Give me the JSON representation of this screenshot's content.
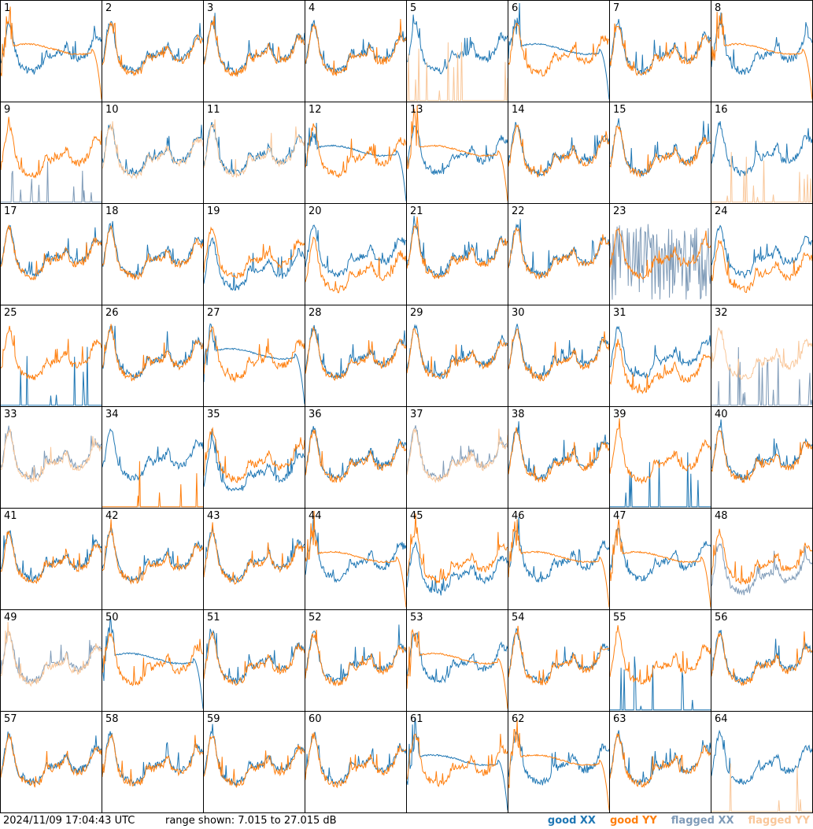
{
  "footer": {
    "timestamp": "2024/11/09 17:04:43 UTC",
    "range_text": "range shown: 7.015 to 27.015 dB"
  },
  "legend": [
    {
      "label": "good XX",
      "color": "#1f77b4"
    },
    {
      "label": "good YY",
      "color": "#ff7f0e"
    },
    {
      "label": "flagged XX",
      "color": "#7f9bb8"
    },
    {
      "label": "flagged YY",
      "color": "#f9c79a"
    }
  ],
  "chart_data": {
    "type": "line",
    "grid": {
      "rows": 8,
      "cols": 8
    },
    "ylim": [
      7.015,
      27.015
    ],
    "yunit": "dB",
    "series_keys": [
      "good XX",
      "good YY",
      "flagged XX",
      "flagged YY"
    ],
    "panels": [
      {
        "id": "1",
        "xx": {
          "status": "good",
          "shape": "normal"
        },
        "yy": {
          "status": "good",
          "shape": "dropoff"
        }
      },
      {
        "id": "2",
        "xx": {
          "status": "good",
          "shape": "normal"
        },
        "yy": {
          "status": "good",
          "shape": "normal"
        }
      },
      {
        "id": "3",
        "xx": {
          "status": "good",
          "shape": "normal"
        },
        "yy": {
          "status": "good",
          "shape": "normal"
        }
      },
      {
        "id": "4",
        "xx": {
          "status": "good",
          "shape": "normal"
        },
        "yy": {
          "status": "good",
          "shape": "normal"
        }
      },
      {
        "id": "5",
        "xx": {
          "status": "good",
          "shape": "normal"
        },
        "yy": {
          "status": "flagged",
          "shape": "spikes"
        }
      },
      {
        "id": "6",
        "xx": {
          "status": "good",
          "shape": "dropoff"
        },
        "yy": {
          "status": "good",
          "shape": "normal"
        }
      },
      {
        "id": "7",
        "xx": {
          "status": "good",
          "shape": "normal"
        },
        "yy": {
          "status": "good",
          "shape": "normal"
        }
      },
      {
        "id": "8",
        "xx": {
          "status": "good",
          "shape": "normal"
        },
        "yy": {
          "status": "good",
          "shape": "dropoff"
        }
      },
      {
        "id": "9",
        "xx": {
          "status": "flagged",
          "shape": "spikes"
        },
        "yy": {
          "status": "good",
          "shape": "normal"
        }
      },
      {
        "id": "10",
        "xx": {
          "status": "good",
          "shape": "normal"
        },
        "yy": {
          "status": "flagged",
          "shape": "normal"
        }
      },
      {
        "id": "11",
        "xx": {
          "status": "good",
          "shape": "normal"
        },
        "yy": {
          "status": "flagged",
          "shape": "normal"
        }
      },
      {
        "id": "12",
        "xx": {
          "status": "good",
          "shape": "dropoff"
        },
        "yy": {
          "status": "good",
          "shape": "normal"
        }
      },
      {
        "id": "13",
        "xx": {
          "status": "good",
          "shape": "normal"
        },
        "yy": {
          "status": "good",
          "shape": "dropoff"
        }
      },
      {
        "id": "14",
        "xx": {
          "status": "good",
          "shape": "normal"
        },
        "yy": {
          "status": "good",
          "shape": "normal"
        }
      },
      {
        "id": "15",
        "xx": {
          "status": "good",
          "shape": "normal"
        },
        "yy": {
          "status": "good",
          "shape": "normal"
        }
      },
      {
        "id": "16",
        "xx": {
          "status": "good",
          "shape": "normal"
        },
        "yy": {
          "status": "flagged",
          "shape": "spikes"
        }
      },
      {
        "id": "17",
        "xx": {
          "status": "good",
          "shape": "normal"
        },
        "yy": {
          "status": "good",
          "shape": "normal"
        }
      },
      {
        "id": "18",
        "xx": {
          "status": "good",
          "shape": "normal"
        },
        "yy": {
          "status": "good",
          "shape": "normal"
        }
      },
      {
        "id": "19",
        "xx": {
          "status": "good",
          "shape": "low"
        },
        "yy": {
          "status": "good",
          "shape": "normal"
        }
      },
      {
        "id": "20",
        "xx": {
          "status": "good",
          "shape": "normal"
        },
        "yy": {
          "status": "good",
          "shape": "low"
        }
      },
      {
        "id": "21",
        "xx": {
          "status": "good",
          "shape": "normal"
        },
        "yy": {
          "status": "good",
          "shape": "normal"
        }
      },
      {
        "id": "22",
        "xx": {
          "status": "good",
          "shape": "normal"
        },
        "yy": {
          "status": "good",
          "shape": "normal"
        }
      },
      {
        "id": "23",
        "xx": {
          "status": "flagged",
          "shape": "noisy"
        },
        "yy": {
          "status": "good",
          "shape": "normal"
        }
      },
      {
        "id": "24",
        "xx": {
          "status": "good",
          "shape": "normal"
        },
        "yy": {
          "status": "good",
          "shape": "low"
        }
      },
      {
        "id": "25",
        "xx": {
          "status": "good",
          "shape": "spikes"
        },
        "yy": {
          "status": "good",
          "shape": "normal"
        }
      },
      {
        "id": "26",
        "xx": {
          "status": "good",
          "shape": "normal"
        },
        "yy": {
          "status": "good",
          "shape": "normal"
        }
      },
      {
        "id": "27",
        "xx": {
          "status": "good",
          "shape": "dropoff"
        },
        "yy": {
          "status": "good",
          "shape": "normal"
        }
      },
      {
        "id": "28",
        "xx": {
          "status": "good",
          "shape": "normal"
        },
        "yy": {
          "status": "good",
          "shape": "normal"
        }
      },
      {
        "id": "29",
        "xx": {
          "status": "good",
          "shape": "normal"
        },
        "yy": {
          "status": "good",
          "shape": "normal"
        }
      },
      {
        "id": "30",
        "xx": {
          "status": "good",
          "shape": "normal"
        },
        "yy": {
          "status": "good",
          "shape": "normal"
        }
      },
      {
        "id": "31",
        "xx": {
          "status": "good",
          "shape": "normal"
        },
        "yy": {
          "status": "good",
          "shape": "low"
        }
      },
      {
        "id": "32",
        "xx": {
          "status": "flagged",
          "shape": "spikes"
        },
        "yy": {
          "status": "flagged",
          "shape": "normal"
        }
      },
      {
        "id": "33",
        "xx": {
          "status": "flagged",
          "shape": "normal"
        },
        "yy": {
          "status": "flagged",
          "shape": "normal"
        }
      },
      {
        "id": "34",
        "xx": {
          "status": "good",
          "shape": "normal"
        },
        "yy": {
          "status": "good",
          "shape": "spikes"
        }
      },
      {
        "id": "35",
        "xx": {
          "status": "good",
          "shape": "low"
        },
        "yy": {
          "status": "good",
          "shape": "normal"
        }
      },
      {
        "id": "36",
        "xx": {
          "status": "good",
          "shape": "normal"
        },
        "yy": {
          "status": "good",
          "shape": "normal"
        }
      },
      {
        "id": "37",
        "xx": {
          "status": "flagged",
          "shape": "normal"
        },
        "yy": {
          "status": "flagged",
          "shape": "normal"
        }
      },
      {
        "id": "38",
        "xx": {
          "status": "good",
          "shape": "normal"
        },
        "yy": {
          "status": "good",
          "shape": "normal"
        }
      },
      {
        "id": "39",
        "xx": {
          "status": "good",
          "shape": "spikes"
        },
        "yy": {
          "status": "good",
          "shape": "normal"
        }
      },
      {
        "id": "40",
        "xx": {
          "status": "good",
          "shape": "normal"
        },
        "yy": {
          "status": "good",
          "shape": "normal"
        }
      },
      {
        "id": "41",
        "xx": {
          "status": "good",
          "shape": "normal"
        },
        "yy": {
          "status": "good",
          "shape": "normal"
        }
      },
      {
        "id": "42",
        "xx": {
          "status": "good",
          "shape": "normal"
        },
        "yy": {
          "status": "good",
          "shape": "normal"
        }
      },
      {
        "id": "43",
        "xx": {
          "status": "good",
          "shape": "normal"
        },
        "yy": {
          "status": "good",
          "shape": "normal"
        }
      },
      {
        "id": "44",
        "xx": {
          "status": "good",
          "shape": "normal"
        },
        "yy": {
          "status": "good",
          "shape": "dropoff"
        }
      },
      {
        "id": "45",
        "xx": {
          "status": "good",
          "shape": "low"
        },
        "yy": {
          "status": "good",
          "shape": "normal"
        }
      },
      {
        "id": "46",
        "xx": {
          "status": "good",
          "shape": "normal"
        },
        "yy": {
          "status": "good",
          "shape": "dropoff"
        }
      },
      {
        "id": "47",
        "xx": {
          "status": "good",
          "shape": "normal"
        },
        "yy": {
          "status": "good",
          "shape": "dropoff"
        }
      },
      {
        "id": "48",
        "xx": {
          "status": "flagged",
          "shape": "low"
        },
        "yy": {
          "status": "good",
          "shape": "normal"
        }
      },
      {
        "id": "49",
        "xx": {
          "status": "flagged",
          "shape": "normal"
        },
        "yy": {
          "status": "flagged",
          "shape": "normal"
        }
      },
      {
        "id": "50",
        "xx": {
          "status": "good",
          "shape": "dropoff"
        },
        "yy": {
          "status": "good",
          "shape": "normal"
        }
      },
      {
        "id": "51",
        "xx": {
          "status": "good",
          "shape": "normal"
        },
        "yy": {
          "status": "good",
          "shape": "normal"
        }
      },
      {
        "id": "52",
        "xx": {
          "status": "good",
          "shape": "normal"
        },
        "yy": {
          "status": "good",
          "shape": "normal"
        }
      },
      {
        "id": "53",
        "xx": {
          "status": "good",
          "shape": "normal"
        },
        "yy": {
          "status": "good",
          "shape": "dropoff"
        }
      },
      {
        "id": "54",
        "xx": {
          "status": "good",
          "shape": "normal"
        },
        "yy": {
          "status": "good",
          "shape": "normal"
        }
      },
      {
        "id": "55",
        "xx": {
          "status": "good",
          "shape": "spikes"
        },
        "yy": {
          "status": "good",
          "shape": "normal"
        }
      },
      {
        "id": "56",
        "xx": {
          "status": "good",
          "shape": "normal"
        },
        "yy": {
          "status": "good",
          "shape": "normal"
        }
      },
      {
        "id": "57",
        "xx": {
          "status": "good",
          "shape": "normal"
        },
        "yy": {
          "status": "good",
          "shape": "normal"
        }
      },
      {
        "id": "58",
        "xx": {
          "status": "good",
          "shape": "normal"
        },
        "yy": {
          "status": "good",
          "shape": "normal"
        }
      },
      {
        "id": "59",
        "xx": {
          "status": "good",
          "shape": "normal"
        },
        "yy": {
          "status": "good",
          "shape": "normal"
        }
      },
      {
        "id": "60",
        "xx": {
          "status": "good",
          "shape": "normal"
        },
        "yy": {
          "status": "good",
          "shape": "normal"
        }
      },
      {
        "id": "61",
        "xx": {
          "status": "good",
          "shape": "dropoff"
        },
        "yy": {
          "status": "good",
          "shape": "normal"
        }
      },
      {
        "id": "62",
        "xx": {
          "status": "good",
          "shape": "normal"
        },
        "yy": {
          "status": "good",
          "shape": "dropoff"
        }
      },
      {
        "id": "63",
        "xx": {
          "status": "good",
          "shape": "normal"
        },
        "yy": {
          "status": "good",
          "shape": "normal"
        }
      },
      {
        "id": "64",
        "xx": {
          "status": "good",
          "shape": "normal"
        },
        "yy": {
          "status": "flagged",
          "shape": "spikes"
        }
      }
    ]
  }
}
